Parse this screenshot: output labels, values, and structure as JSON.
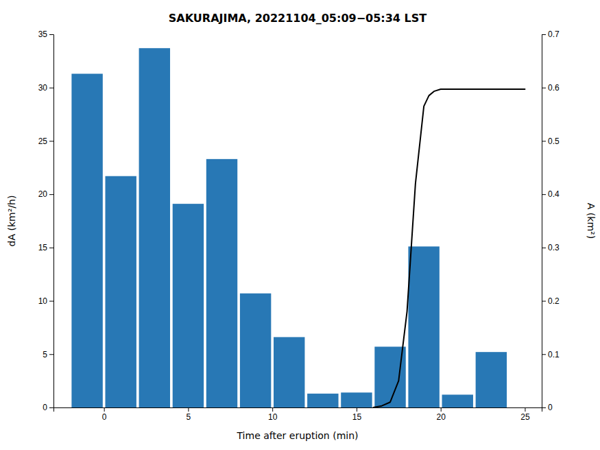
{
  "chart_data": {
    "type": "bar",
    "title": "SAKURAJIMA, 20221104_05:09−05:34 LST",
    "x_label": "Time after eruption (min)",
    "y_label": "dA (km²/h)",
    "y2_label": "A (km²)",
    "xlim": [
      -3,
      26
    ],
    "xticks": [
      0,
      5,
      10,
      15,
      20,
      25
    ],
    "ylim": [
      0,
      35
    ],
    "yticks": [
      0,
      5,
      10,
      15,
      20,
      25,
      30,
      35
    ],
    "y2lim": [
      0,
      0.7
    ],
    "y2ticks": [
      0,
      0.1,
      0.2,
      0.3,
      0.4,
      0.5,
      0.6,
      0.7
    ],
    "grid": false,
    "series": [
      {
        "type": "bar",
        "color": "#2878b5",
        "x": [
          -1,
          1,
          3,
          5,
          7,
          9,
          11,
          13,
          15,
          17,
          19,
          21,
          23
        ],
        "values": [
          31.3,
          21.7,
          33.7,
          19.1,
          23.3,
          10.7,
          6.6,
          1.3,
          1.4,
          5.7,
          15.1,
          1.2,
          5.2
        ]
      },
      {
        "type": "line",
        "color": "black",
        "axis": "y2",
        "x": [
          16.0,
          16.5,
          17.0,
          17.5,
          18.0,
          18.5,
          19.0,
          19.3,
          19.6,
          20.0,
          21.0,
          25.0
        ],
        "values": [
          0.0,
          0.003,
          0.01,
          0.05,
          0.18,
          0.42,
          0.565,
          0.585,
          0.593,
          0.597,
          0.597,
          0.597
        ]
      }
    ]
  }
}
